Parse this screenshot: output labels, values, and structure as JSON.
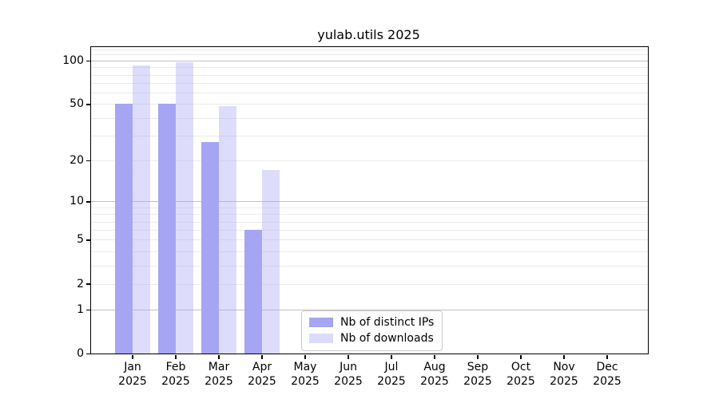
{
  "title": "yulab.utils 2025",
  "chart_data": {
    "type": "bar",
    "title": "yulab.utils 2025",
    "year": "2025",
    "months": [
      "Jan",
      "Feb",
      "Mar",
      "Apr",
      "May",
      "Jun",
      "Jul",
      "Aug",
      "Sep",
      "Oct",
      "Nov",
      "Dec"
    ],
    "series": [
      {
        "name": "Nb of distinct IPs",
        "color": "#a5a5f4",
        "values": [
          50,
          50,
          27,
          6,
          0,
          0,
          0,
          0,
          0,
          0,
          0,
          0
        ]
      },
      {
        "name": "Nb of downloads",
        "color": "#dcdcfa",
        "fill": "rgba(166,166,245,0.38)",
        "values": [
          93,
          98,
          48,
          17,
          0,
          0,
          0,
          0,
          0,
          0,
          0,
          0
        ]
      }
    ],
    "yscale": "log1p",
    "ylim": [
      0,
      124
    ],
    "ytick_labels": [
      100,
      50,
      20,
      10,
      5,
      2,
      1,
      0
    ],
    "major_gridlines": [
      1,
      10,
      100
    ],
    "minor_gridlines": [
      2,
      3,
      4,
      5,
      6,
      7,
      8,
      9,
      20,
      30,
      40,
      50,
      60,
      70,
      80,
      90,
      110,
      120
    ],
    "grid": true,
    "legend_position": "lower center"
  },
  "legend": {
    "items": [
      "Nb of distinct IPs",
      "Nb of downloads"
    ]
  },
  "colors": {
    "bar_dark": "#a5a5f4",
    "bar_light": "#dcdcfa",
    "major_grid": "#c2c2c2",
    "minor_grid": "#ebebeb",
    "spine": "#000000",
    "legend_border": "#c9c9c9",
    "background": "#ffffff",
    "text": "#000000"
  }
}
